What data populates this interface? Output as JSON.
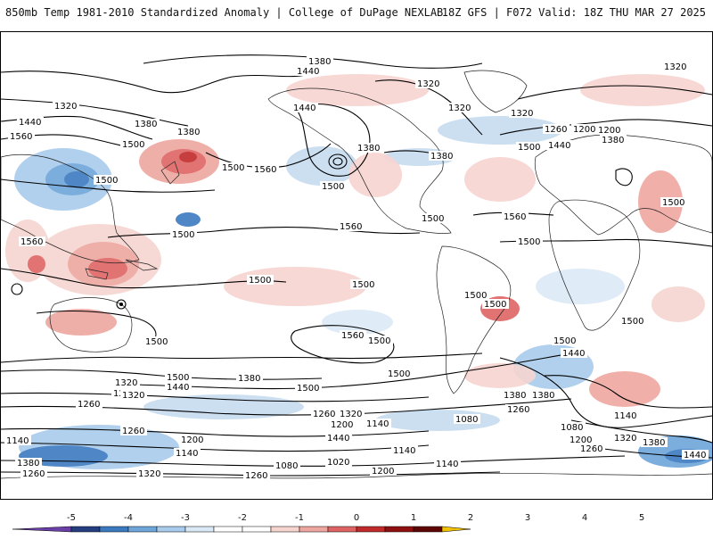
{
  "header": {
    "title_left": "850mb Temp 1981-2010 Standardized Anomaly | College of DuPage NEXLAB",
    "title_right": "18Z GFS | F072 Valid: 18Z THU MAR 27 2025"
  },
  "map": {
    "region": "global",
    "contour_labels": [
      "1380",
      "1440",
      "1320",
      "1320",
      "1440",
      "1380",
      "1440",
      "1560",
      "1320",
      "1380",
      "1500",
      "1560",
      "1500",
      "1500",
      "1500",
      "1440",
      "1380",
      "1500",
      "1380",
      "1560",
      "1560",
      "1500",
      "1500",
      "1560",
      "1500",
      "1500",
      "1500",
      "1500",
      "1500",
      "1560",
      "1500",
      "1500",
      "1440",
      "1380",
      "1500",
      "1320",
      "1200",
      "1260",
      "1440",
      "1500",
      "1380",
      "1500",
      "1260",
      "1320",
      "1140",
      "1080",
      "1200",
      "1260",
      "1380",
      "1140",
      "1080",
      "1200",
      "1320",
      "1380",
      "1260",
      "1440",
      "1140",
      "1260",
      "1200",
      "1140",
      "1080",
      "1020",
      "1200",
      "1140",
      "1320",
      "1260",
      "1260",
      "1320",
      "1200",
      "1140",
      "1440",
      "1500",
      "1500",
      "1320",
      "1380",
      "1260",
      "1200",
      "1380",
      "1500",
      "1320"
    ]
  },
  "legend": {
    "ticks": [
      "-5",
      "-4",
      "-3",
      "-2",
      "-1",
      "0",
      "1",
      "2",
      "3",
      "4",
      "5"
    ],
    "colors": [
      "#6a3fa8",
      "#243e80",
      "#3c7ac0",
      "#6ea6da",
      "#a9cbec",
      "#dbe9f6",
      "#ffffff",
      "#ffffff",
      "#f6d4d0",
      "#eea7a0",
      "#de6464",
      "#c12a2a",
      "#8f1010",
      "#5e0606",
      "#f2c200"
    ]
  }
}
